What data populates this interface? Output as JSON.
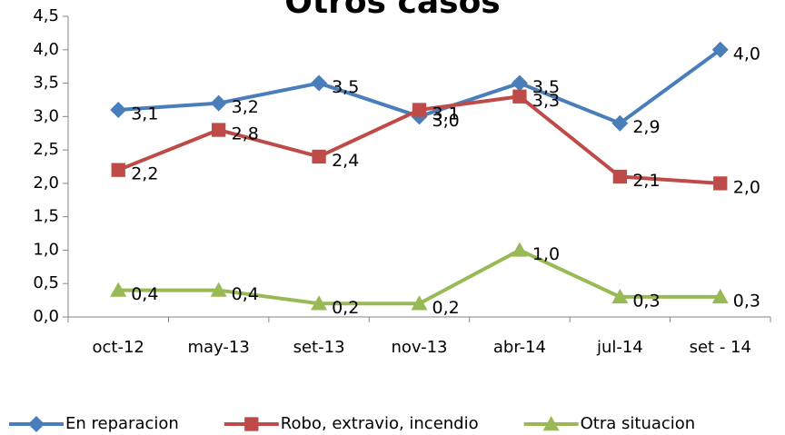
{
  "chart_data": {
    "type": "line",
    "title": "Otros casos",
    "categories": [
      "oct-12",
      "may-13",
      "set-13",
      "nov-13",
      "abr-14",
      "jul-14",
      "set - 14"
    ],
    "series": [
      {
        "name": "En reparacion",
        "color": "#4a7ebb",
        "marker": "diamond",
        "values": [
          3.1,
          3.2,
          3.5,
          3.0,
          3.5,
          2.9,
          4.0
        ],
        "value_labels": [
          "3,1",
          "3,2",
          "3,5",
          "3,0",
          "3,5",
          "2,9",
          "4,0"
        ]
      },
      {
        "name": "Robo, extravio, incendio",
        "color": "#be4b48",
        "marker": "square",
        "values": [
          2.2,
          2.8,
          2.4,
          3.1,
          3.3,
          2.1,
          2.0
        ],
        "value_labels": [
          "2,2",
          "2,8",
          "2,4",
          "3,1",
          "3,3",
          "2,1",
          "2,0"
        ]
      },
      {
        "name": "Otra situacion",
        "color": "#98b954",
        "marker": "triangle",
        "values": [
          0.4,
          0.4,
          0.2,
          0.2,
          1.0,
          0.3,
          0.3
        ],
        "value_labels": [
          "0,4",
          "0,4",
          "0,2",
          "0,2",
          "1,0",
          "0,3",
          "0,3"
        ]
      }
    ],
    "ylim": [
      0,
      4.5
    ],
    "yticks": [
      {
        "value": 0,
        "label": "0,0"
      },
      {
        "value": 0.5,
        "label": "0,5"
      },
      {
        "value": 1,
        "label": "1,0"
      },
      {
        "value": 1.5,
        "label": "1,5"
      },
      {
        "value": 2,
        "label": "2,0"
      },
      {
        "value": 2.5,
        "label": "2,5"
      },
      {
        "value": 3,
        "label": "3,0"
      },
      {
        "value": 3.5,
        "label": "3,5"
      },
      {
        "value": 4,
        "label": "4,0"
      },
      {
        "value": 4.5,
        "label": "4,5"
      }
    ],
    "grid": false,
    "legend": "bottom"
  }
}
